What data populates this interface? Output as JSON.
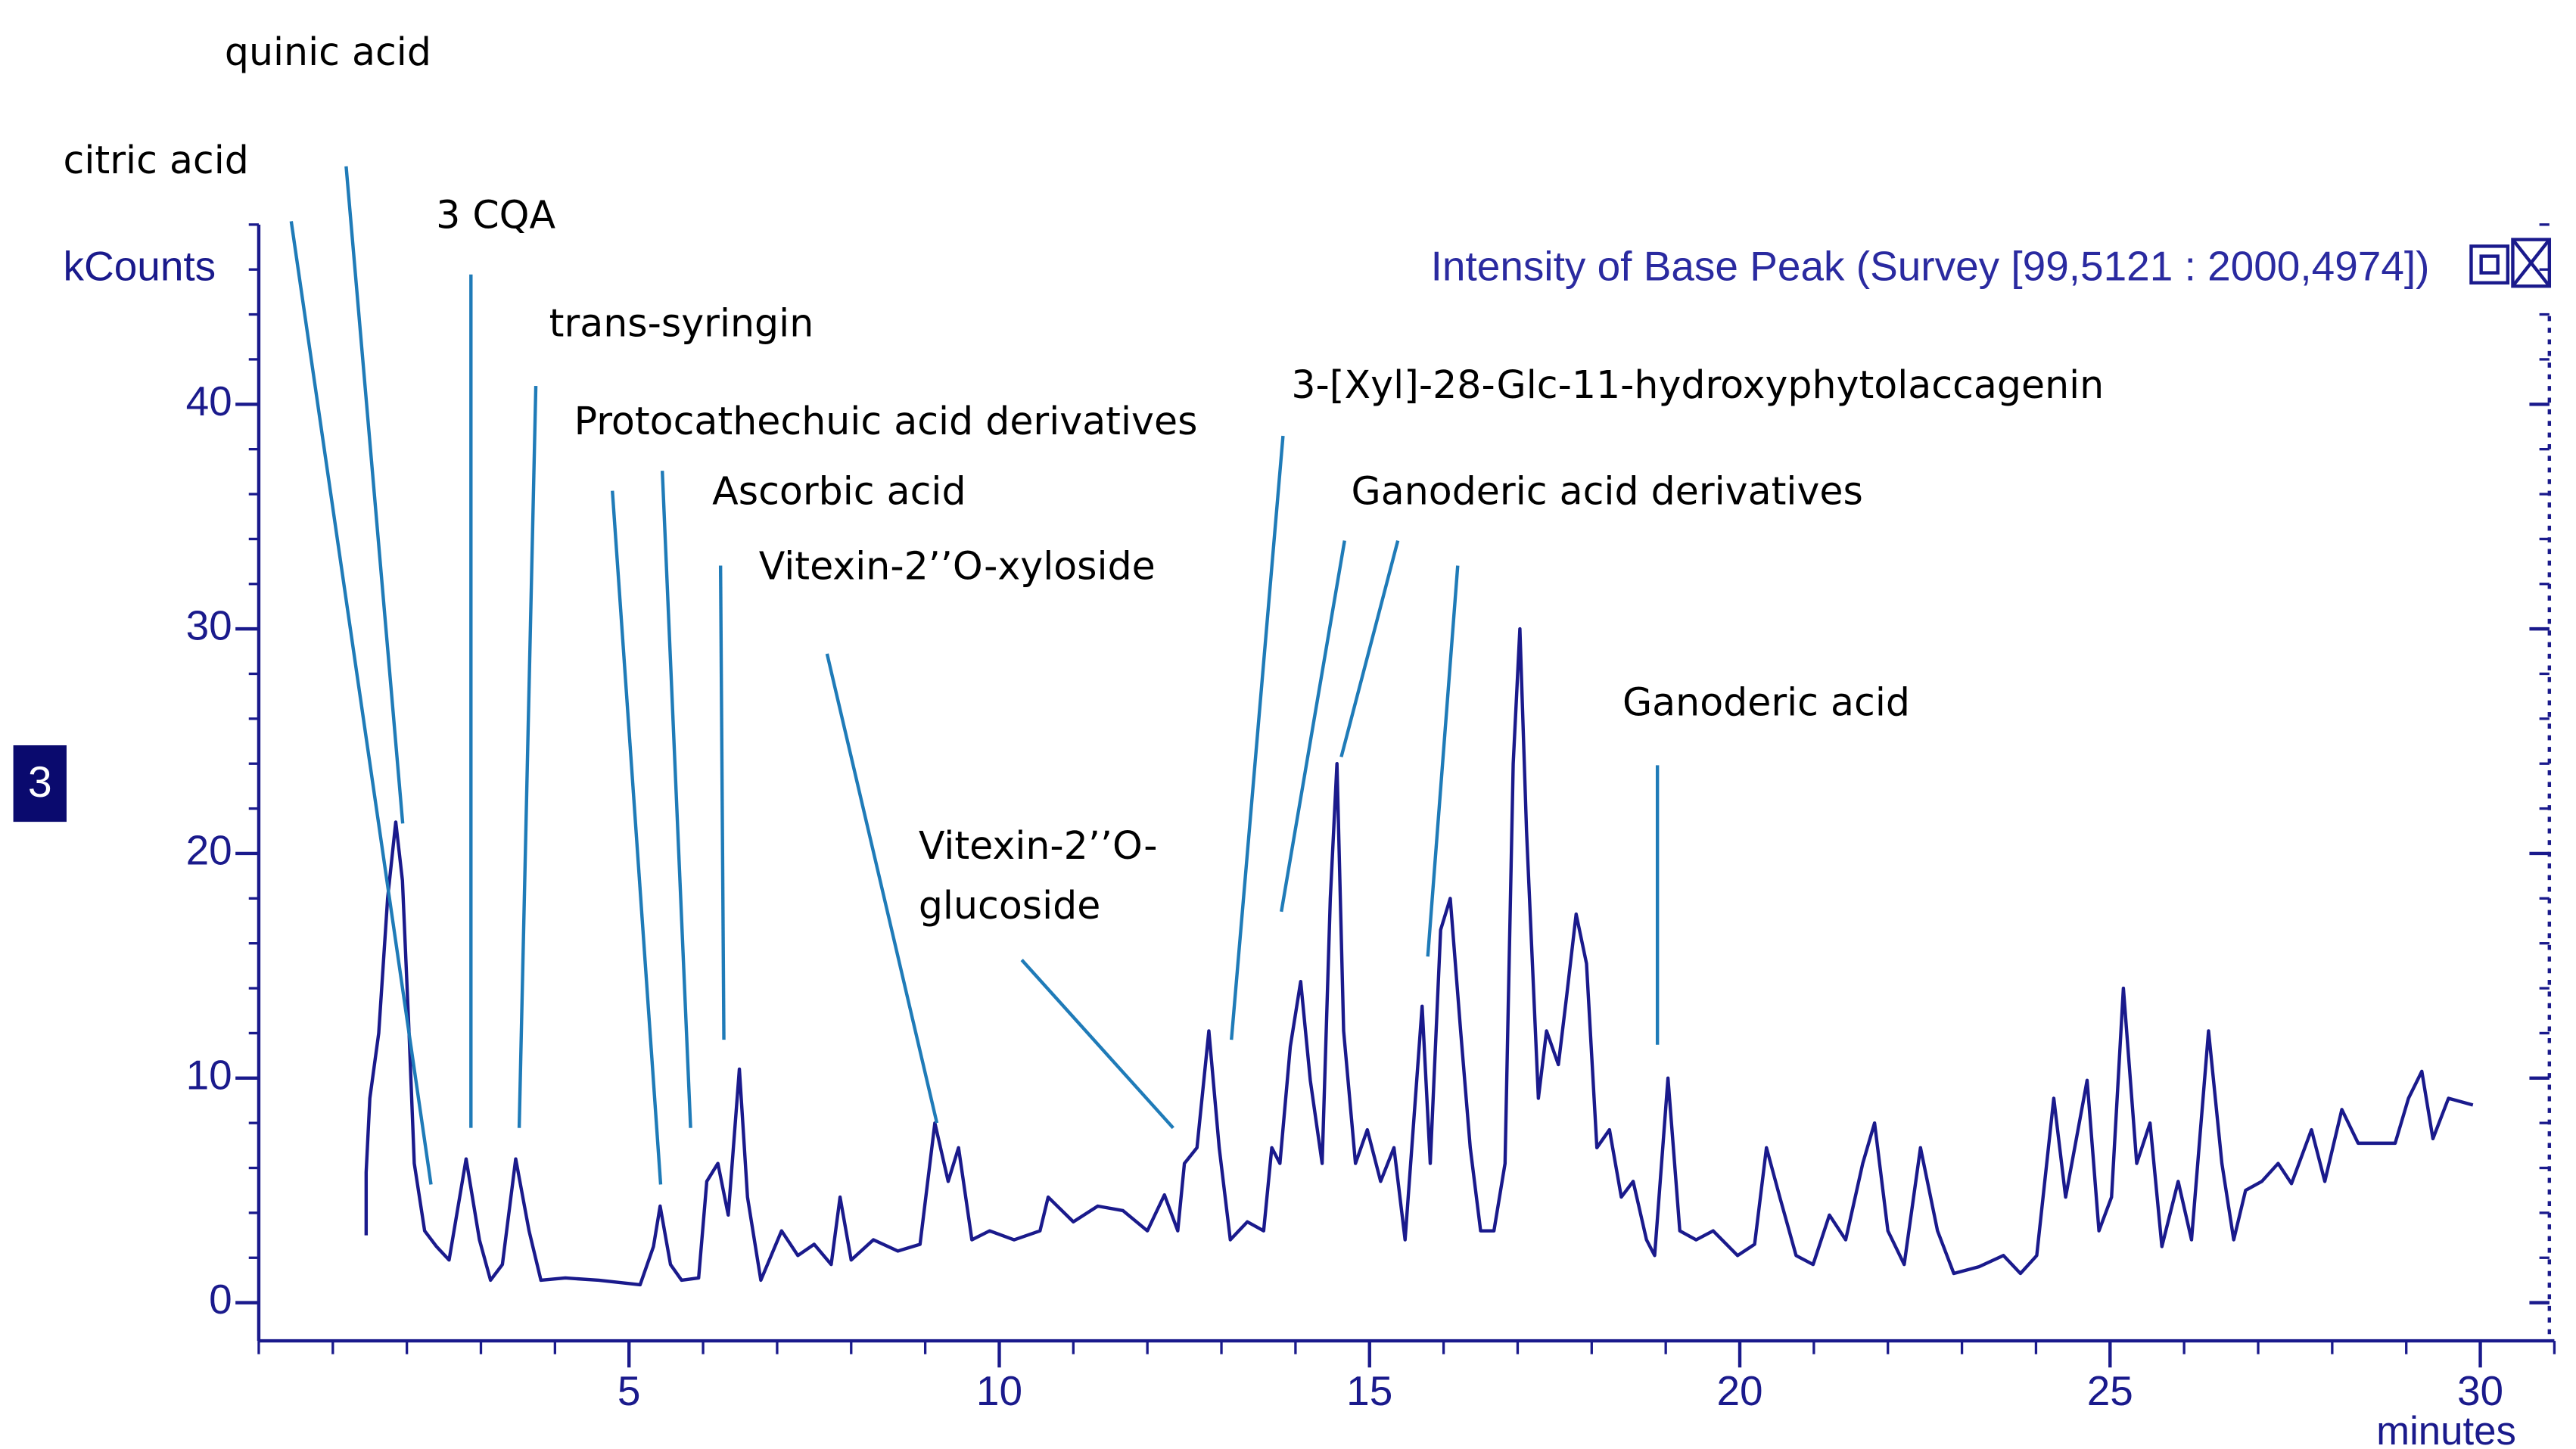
{
  "chart_data": {
    "type": "line",
    "title": "Intensity of Base Peak (Survey [99,5121 : 2000,4974])",
    "y_label": "kCounts",
    "x_label": "minutes",
    "panel_label": "3",
    "xlim": [
      0,
      31
    ],
    "ylim": [
      -1.7,
      48
    ],
    "xticks": [
      5,
      10,
      15,
      20,
      25,
      30
    ],
    "yticks": [
      0,
      10,
      20,
      30,
      40
    ],
    "grid": false,
    "x": [
      1.45,
      1.45,
      1.5,
      1.62,
      1.74,
      1.85,
      1.94,
      2.03,
      2.1,
      2.24,
      2.4,
      2.57,
      2.8,
      2.98,
      3.13,
      3.29,
      3.47,
      3.65,
      3.81,
      4.14,
      4.59,
      5.15,
      5.33,
      5.42,
      5.56,
      5.71,
      5.94,
      6.05,
      6.2,
      6.34,
      6.49,
      6.6,
      6.78,
      7.06,
      7.28,
      7.5,
      7.73,
      7.85,
      8,
      8.3,
      8.63,
      8.93,
      9.13,
      9.31,
      9.45,
      9.63,
      9.87,
      10.2,
      10.55,
      10.66,
      11,
      11.33,
      11.67,
      12,
      12.23,
      12.41,
      12.5,
      12.67,
      12.83,
      12.97,
      13.12,
      13.35,
      13.57,
      13.68,
      13.79,
      13.93,
      14.07,
      14.2,
      14.36,
      14.47,
      14.56,
      14.65,
      14.81,
      14.97,
      15.15,
      15.33,
      15.48,
      15.71,
      15.82,
      15.96,
      16.09,
      16.23,
      16.36,
      16.5,
      16.68,
      16.83,
      16.94,
      17.03,
      17.12,
      17.28,
      17.39,
      17.55,
      17.66,
      17.79,
      17.93,
      18.07,
      18.24,
      18.4,
      18.56,
      18.74,
      18.85,
      19.03,
      19.19,
      19.41,
      19.64,
      19.97,
      20.2,
      20.36,
      20.54,
      20.76,
      20.99,
      21.21,
      21.43,
      21.66,
      21.82,
      22,
      22.22,
      22.44,
      22.67,
      22.89,
      23.23,
      23.56,
      23.79,
      24.01,
      24.24,
      24.4,
      24.69,
      24.85,
      25.02,
      25.18,
      25.36,
      25.54,
      25.7,
      25.92,
      26.1,
      26.33,
      26.51,
      26.67,
      26.83,
      27.05,
      27.27,
      27.45,
      27.72,
      27.9,
      28.13,
      28.35,
      28.85,
      29.03,
      29.21,
      29.36,
      29.57,
      29.9
    ],
    "series": [
      {
        "color": "#1a1a8c",
        "values": [
          3,
          5.8,
          9.1,
          12,
          18,
          21.4,
          18.8,
          12,
          6.2,
          3.2,
          2.5,
          1.9,
          6.4,
          2.8,
          1,
          1.7,
          6.4,
          3.2,
          1,
          1.1,
          1,
          0.8,
          2.5,
          4.3,
          1.7,
          1,
          1.1,
          5.4,
          6.2,
          3.9,
          10.4,
          4.7,
          1,
          3.2,
          2.1,
          2.6,
          1.7,
          4.7,
          1.9,
          2.8,
          2.3,
          2.6,
          8,
          5.4,
          6.9,
          2.8,
          3.2,
          2.8,
          3.2,
          4.7,
          3.6,
          4.3,
          4.1,
          3.2,
          4.8,
          3.2,
          6.2,
          6.9,
          12.1,
          6.9,
          2.8,
          3.6,
          3.2,
          6.9,
          6.2,
          11.4,
          14.3,
          9.9,
          6.2,
          18,
          24,
          12.1,
          6.2,
          7.7,
          5.4,
          6.9,
          2.8,
          13.2,
          6.2,
          16.6,
          18,
          12.1,
          6.9,
          3.2,
          3.2,
          6.2,
          24,
          30,
          21,
          9.1,
          12.1,
          10.6,
          13.6,
          17.3,
          15.1,
          6.9,
          7.7,
          4.7,
          5.4,
          2.8,
          2.1,
          10,
          3.2,
          2.8,
          3.2,
          2.1,
          2.6,
          6.9,
          4.7,
          2.1,
          1.7,
          3.9,
          2.8,
          6.2,
          8,
          3.2,
          1.7,
          6.9,
          3.2,
          1.3,
          1.6,
          2.1,
          1.3,
          2.1,
          9.1,
          4.7,
          9.9,
          3.2,
          4.7,
          14,
          6.2,
          8,
          2.5,
          5.4,
          2.8,
          12.1,
          6.2,
          2.8,
          5,
          5.4,
          6.2,
          5.3,
          7.7,
          5.4,
          8.6,
          7.1,
          7.1,
          9.1,
          10.3,
          7.3,
          9.1,
          8.8
        ]
      }
    ],
    "annotations": [
      "quinic acid",
      "citric acid",
      "3 CQA",
      "trans-syringin",
      "Protocathechuic acid derivatives",
      "Ascorbic acid",
      "Vitexin-2’’O-xyloside",
      "Vitexin-2’’O-",
      "glucoside",
      "3-[Xyl]-28-Glc-11-hydroxyphytolaccagenin",
      "Ganoderic acid derivatives",
      "Ganoderic acid"
    ]
  }
}
